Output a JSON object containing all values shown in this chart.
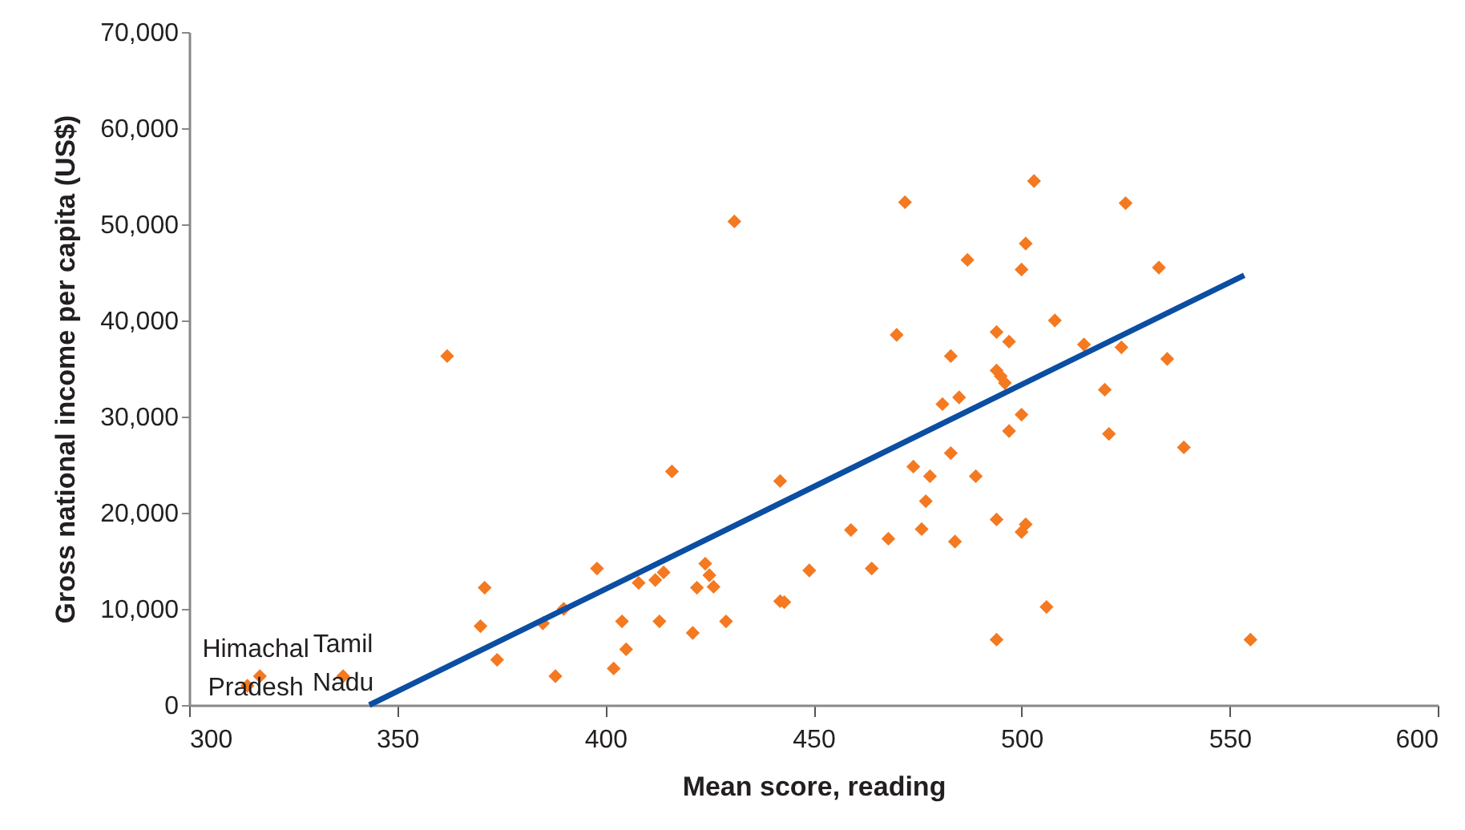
{
  "chart_data": {
    "type": "scatter",
    "xlabel": "Mean score, reading",
    "ylabel": "Gross national income per capita  (US$)",
    "xlim": [
      300,
      600
    ],
    "xticks": [
      300,
      350,
      400,
      450,
      500,
      550,
      600
    ],
    "ylim": [
      0,
      70000
    ],
    "yticks": [
      0,
      {
        "value": 10000,
        "label": "10,000"
      },
      {
        "value": 20000,
        "label": "20,000"
      },
      {
        "value": 30000,
        "label": "30,000"
      },
      {
        "value": 40000,
        "label": "40,000"
      },
      {
        "value": 50000,
        "label": "50,000"
      },
      {
        "value": 60000,
        "label": "60,000"
      },
      {
        "value": 70000,
        "label": "70,000"
      }
    ],
    "grid": false,
    "series": [
      {
        "marker": "diamond",
        "color": "#f47920",
        "x": [
          314,
          317,
          337,
          362,
          370,
          371,
          374,
          385,
          390,
          388,
          398,
          404,
          405,
          402,
          408,
          412,
          414,
          413,
          416,
          421,
          422,
          424,
          425,
          426,
          429,
          431,
          442,
          443,
          442,
          449,
          459,
          464,
          468,
          470,
          472,
          474,
          476,
          477,
          478,
          481,
          483,
          483,
          484,
          485,
          487,
          489,
          494,
          494,
          503,
          525,
          501,
          500,
          533,
          508,
          494,
          497,
          515,
          524,
          535,
          494,
          495,
          496,
          520,
          497,
          500,
          521,
          539,
          501,
          500,
          506,
          555
        ],
        "values": [
          2000,
          3000,
          3000,
          36300,
          8200,
          12200,
          4700,
          8500,
          10000,
          3000,
          14200,
          8700,
          5800,
          3800,
          12700,
          13000,
          13800,
          8700,
          24300,
          7500,
          12200,
          14700,
          13500,
          12300,
          8700,
          50300,
          10800,
          10700,
          23300,
          14000,
          18200,
          14200,
          17300,
          38500,
          52300,
          24800,
          18300,
          21200,
          23800,
          31300,
          36300,
          26200,
          17000,
          32000,
          46300,
          23800,
          19300,
          6800,
          54500,
          52200,
          48000,
          45300,
          45500,
          40000,
          38800,
          37800,
          37500,
          37200,
          36000,
          34800,
          34200,
          33500,
          32800,
          28500,
          30200,
          28200,
          26800,
          18800,
          18000,
          10200,
          6800
        ]
      },
      {
        "type": "line",
        "color": "#0b4ea2",
        "x": [
          343.3,
          553.5
        ],
        "values": [
          0,
          44700
        ]
      }
    ],
    "annotations": [
      {
        "text": "Himachal Pradesh",
        "x": 316,
        "y": 2500
      },
      {
        "text": "Tamil Nadu",
        "x": 337,
        "y": 3000
      }
    ]
  }
}
